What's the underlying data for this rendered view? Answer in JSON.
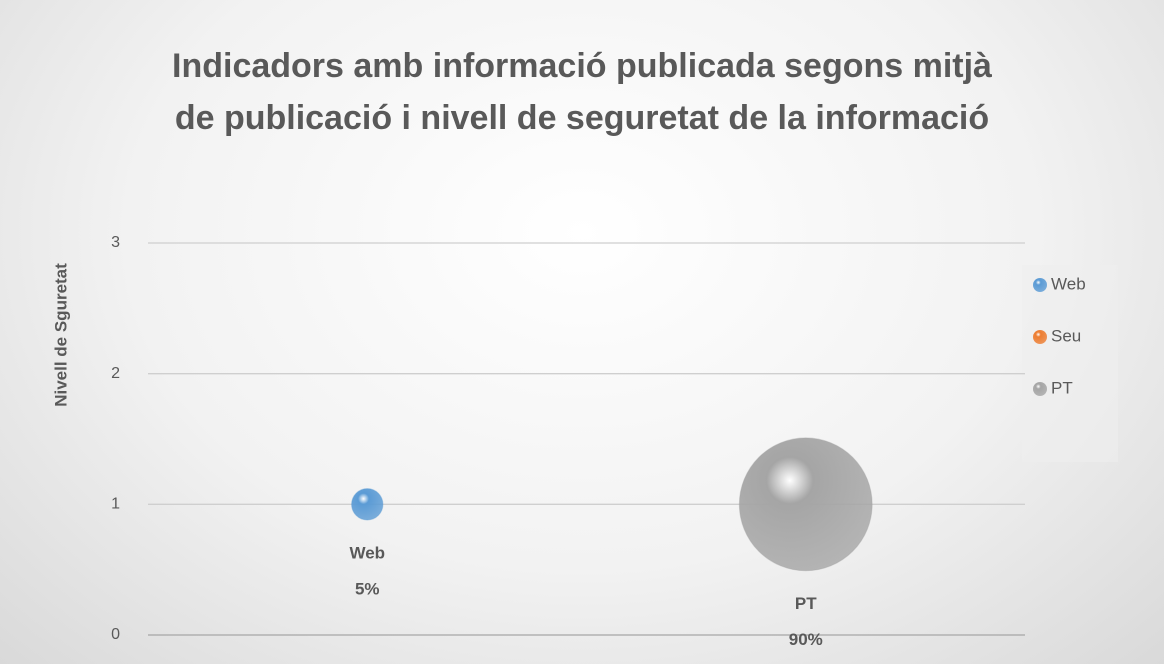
{
  "chart_data": {
    "type": "bubble",
    "title": "Indicadors amb informació publicada segons mitjà de publicació i nivell de seguretat de la informació",
    "y_label": "Nivell de Sguretat",
    "xlim": [
      0,
      4
    ],
    "ylim": [
      0,
      3
    ],
    "yticks": [
      0,
      1,
      2,
      3
    ],
    "grid": true,
    "legend": "right",
    "series": [
      {
        "name": "Web",
        "color": "#5b9bd5",
        "x": [
          1
        ],
        "values": [
          1
        ],
        "sizes": [
          5
        ],
        "value_labels": [
          "5%"
        ]
      },
      {
        "name": "Seu",
        "color": "#ed7d31",
        "x": [],
        "values": [],
        "sizes": [],
        "value_labels": []
      },
      {
        "name": "PT",
        "color": "#a5a5a5",
        "x": [
          3
        ],
        "values": [
          1
        ],
        "sizes": [
          90
        ],
        "value_labels": [
          "90%"
        ]
      }
    ]
  }
}
